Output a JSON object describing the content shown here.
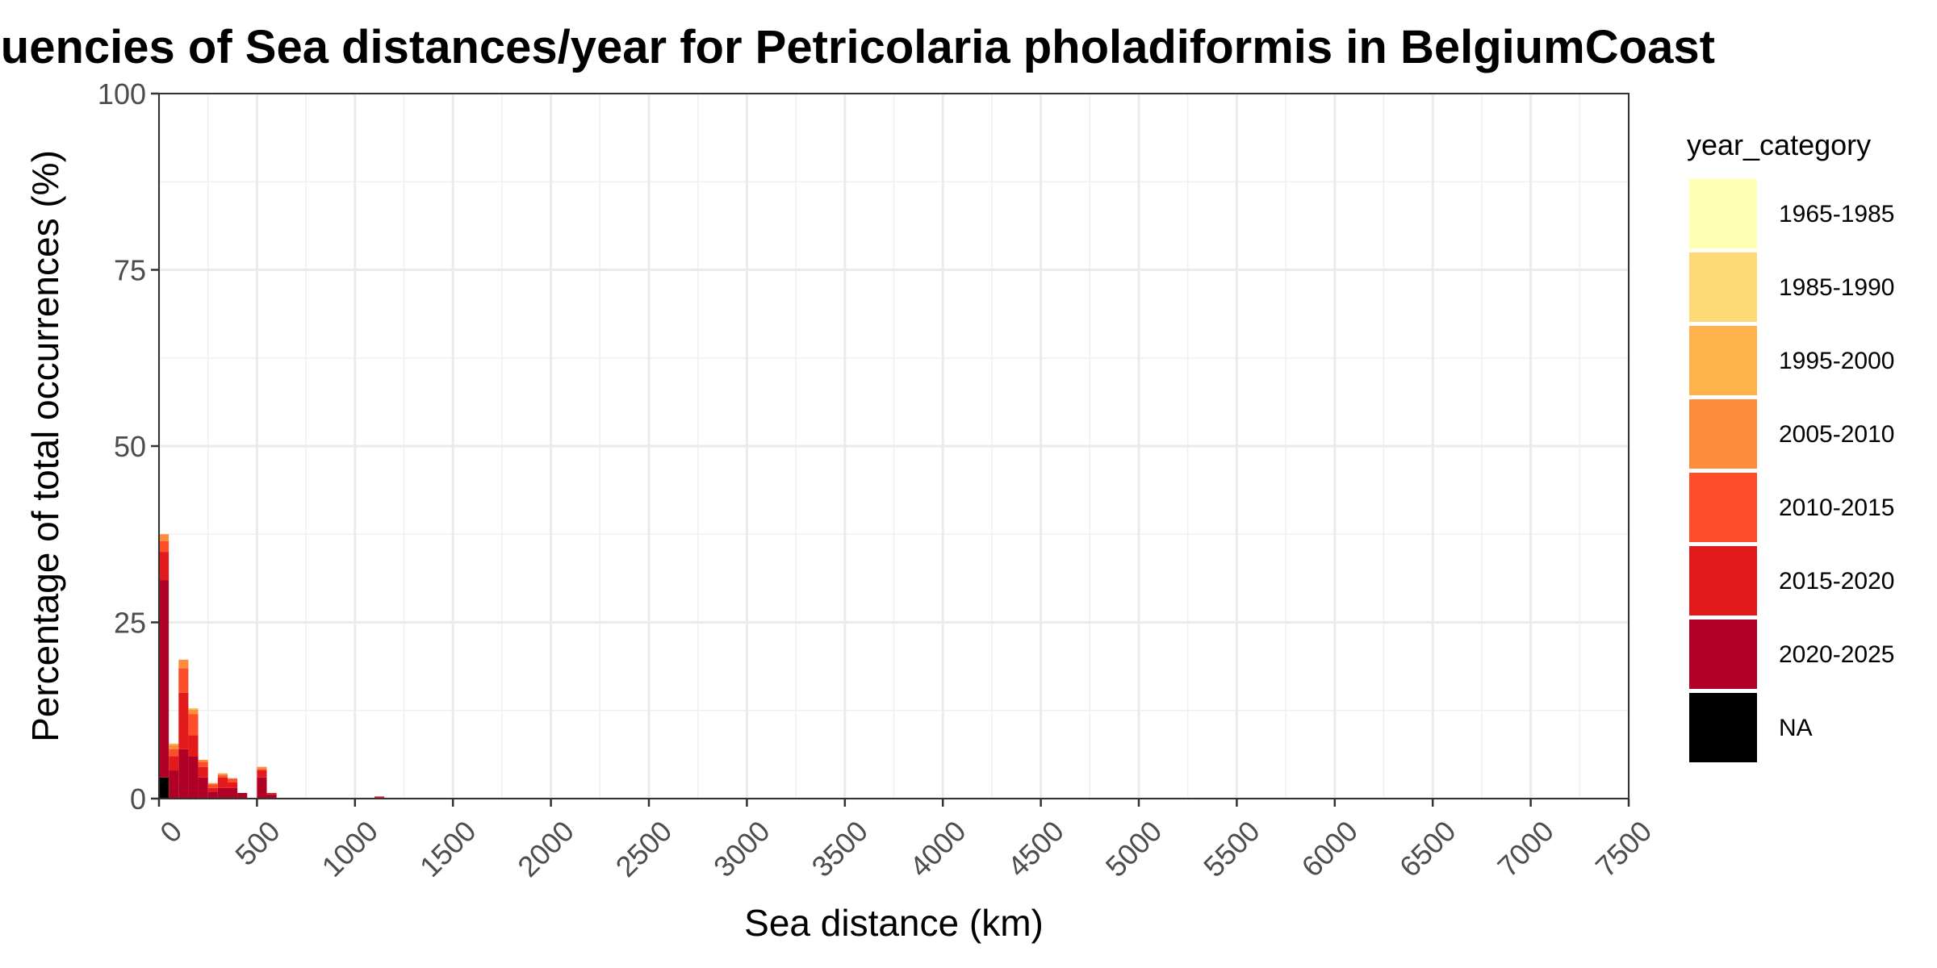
{
  "chart_data": {
    "type": "bar",
    "stacked": true,
    "title": "Frequencies of Sea distances/year for Petricolaria pholadiformis in BelgiumCoast",
    "xlabel": "Sea distance (km)",
    "ylabel": "Percentage of total occurrences (%)",
    "xlim": [
      0,
      7500
    ],
    "ylim": [
      0,
      100
    ],
    "x_ticks": [
      0,
      500,
      1000,
      1500,
      2000,
      2500,
      3000,
      3500,
      4000,
      4500,
      5000,
      5500,
      6000,
      6500,
      7000,
      7500
    ],
    "y_ticks": [
      0,
      25,
      50,
      75,
      100
    ],
    "bin_width": 50,
    "grid": true,
    "legend": {
      "title": "year_category",
      "placement": "right",
      "entries": [
        {
          "label": "1965-1985",
          "color": "#FFFFB2"
        },
        {
          "label": "1985-1990",
          "color": "#FED976"
        },
        {
          "label": "1995-2000",
          "color": "#FEB24C"
        },
        {
          "label": "2005-2010",
          "color": "#FD8D3C"
        },
        {
          "label": "2010-2015",
          "color": "#FC4E2A"
        },
        {
          "label": "2015-2020",
          "color": "#E31A1C"
        },
        {
          "label": "2020-2025",
          "color": "#B10026"
        },
        {
          "label": "NA",
          "color": "#000000"
        }
      ]
    },
    "bins_x": [
      0,
      50,
      100,
      150,
      200,
      250,
      300,
      350,
      400,
      450,
      500,
      550,
      1100
    ],
    "series": [
      {
        "name": "NA",
        "values": [
          3,
          0,
          0,
          0,
          0,
          0,
          0,
          0,
          0,
          0,
          0,
          0,
          0
        ]
      },
      {
        "name": "2020-2025",
        "values": [
          28,
          4,
          7,
          6,
          3,
          1,
          1.5,
          1.5,
          0.8,
          0,
          3,
          0.6,
          0
        ]
      },
      {
        "name": "2015-2020",
        "values": [
          4,
          2,
          8,
          3,
          1.5,
          0.5,
          1.5,
          0.8,
          0,
          0,
          1,
          0.2,
          0.3
        ]
      },
      {
        "name": "2010-2015",
        "values": [
          1.5,
          1,
          3.5,
          3,
          0.7,
          0.5,
          0.3,
          0.5,
          0,
          0,
          0.2,
          0,
          0
        ]
      },
      {
        "name": "2005-2010",
        "values": [
          1,
          0.6,
          1.2,
          0.6,
          0.3,
          0.2,
          0.2,
          0.1,
          0,
          0,
          0.3,
          0,
          0
        ]
      },
      {
        "name": "1995-2000",
        "values": [
          0,
          0.2,
          0,
          0.2,
          0,
          0,
          0.1,
          0,
          0,
          0,
          0,
          0,
          0
        ]
      },
      {
        "name": "1985-1990",
        "values": [
          0,
          0,
          0,
          0,
          0,
          0,
          0,
          0,
          0,
          0,
          0,
          0,
          0
        ]
      },
      {
        "name": "1965-1985",
        "values": [
          0,
          0,
          0,
          0,
          0,
          0,
          0,
          0,
          0,
          0,
          0,
          0,
          0
        ]
      }
    ]
  }
}
